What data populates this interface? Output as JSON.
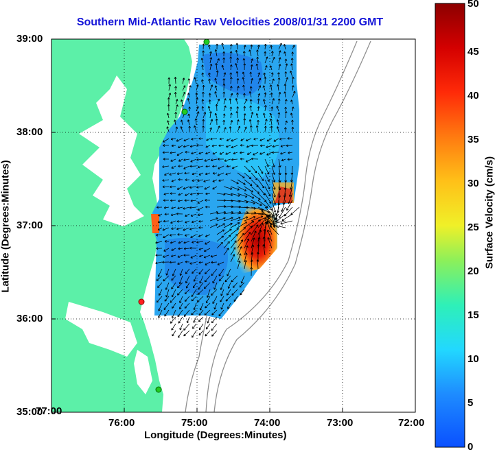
{
  "title": "Southern Mid-Atlantic Raw Velocities 2008/01/31 2200 GMT",
  "map": {
    "x_label": "Longitude (Degrees:Minutes)",
    "y_label": "Latitude (Degrees:Minutes)",
    "x_ticks": [
      "77:00",
      "76:00",
      "75:00",
      "74:00",
      "73:00",
      "72:00"
    ],
    "y_ticks": [
      "39:00",
      "38:00",
      "37:00",
      "36:00",
      "35:00"
    ],
    "land_color": "#5cf0a8",
    "grid": "dotted"
  },
  "colorbar": {
    "label": "Surface Velocity (cm/s)",
    "ticks": [
      "0",
      "5",
      "10",
      "15",
      "20",
      "25",
      "30",
      "35",
      "40",
      "45",
      "50"
    ],
    "min": 0,
    "max": 50
  },
  "stations": [
    "green",
    "green",
    "red",
    "green"
  ]
}
